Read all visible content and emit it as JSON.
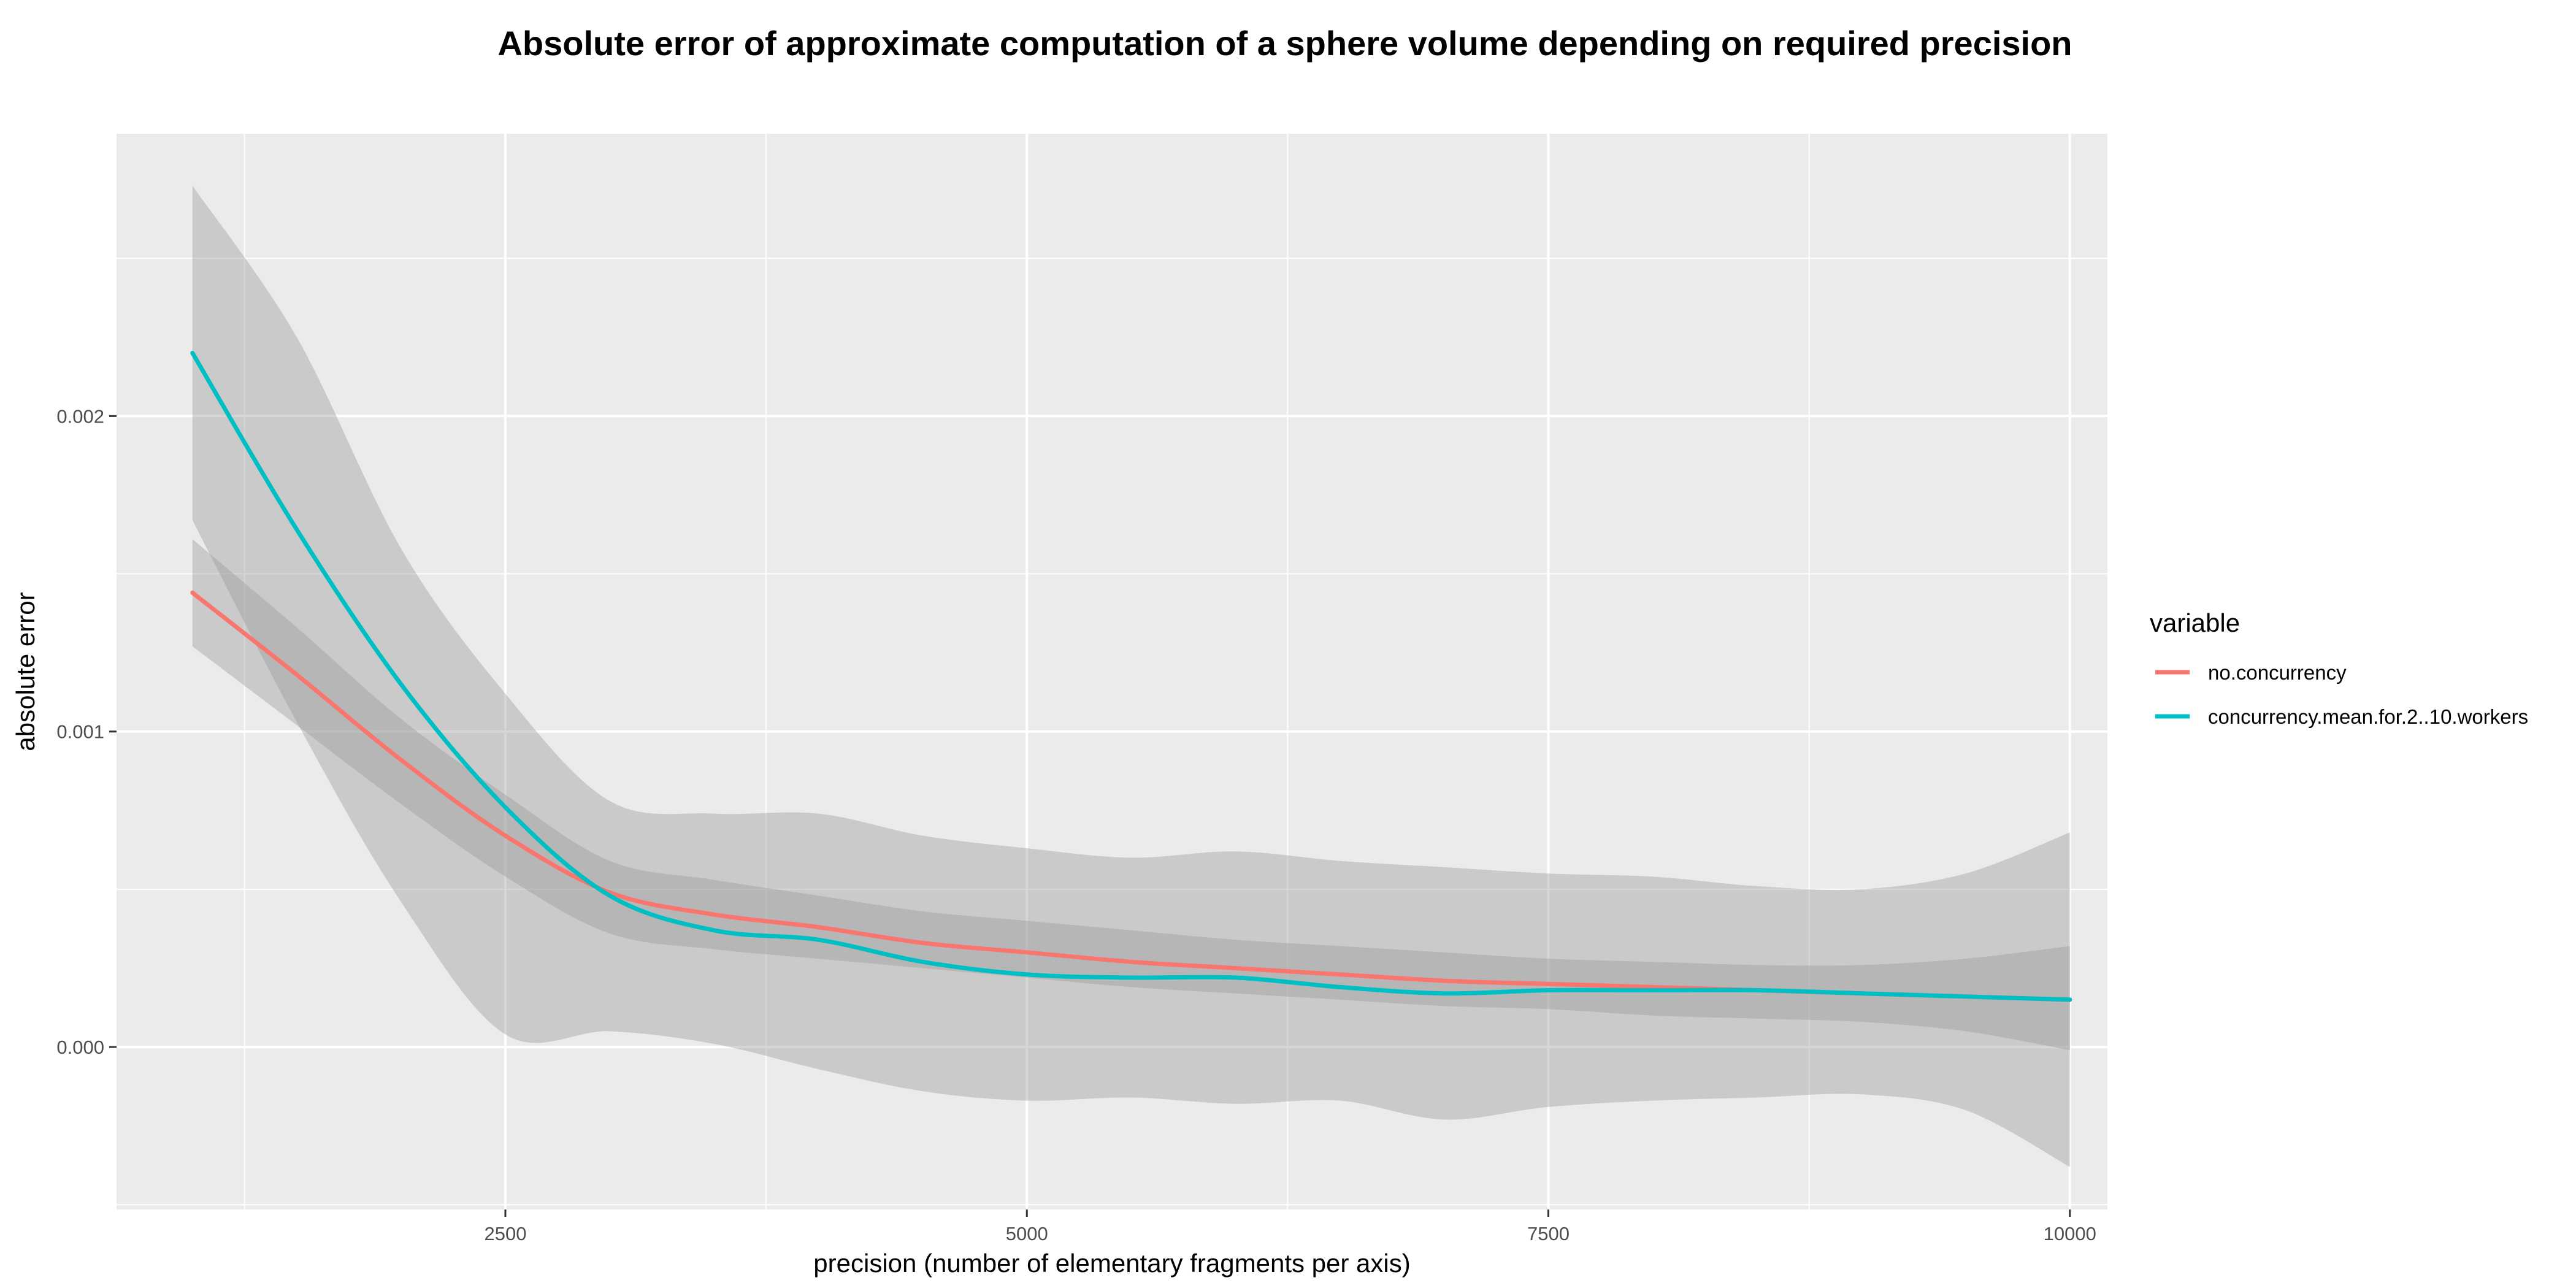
{
  "chart_data": {
    "type": "line",
    "title": "Absolute error of approximate computation of a sphere volume depending on required precision",
    "xlabel": "precision (number of elementary fragments per axis)",
    "ylabel": "absolute error",
    "xlim": [
      636,
      10180
    ],
    "ylim": [
      -0.000515,
      0.002895
    ],
    "x_ticks": [
      2500,
      5000,
      7500,
      10000
    ],
    "x_tick_labels": [
      "2500",
      "5000",
      "7500",
      "10000"
    ],
    "y_ticks": [
      0,
      0.001,
      0.002
    ],
    "y_tick_labels": [
      "0.000",
      "0.001",
      "0.002"
    ],
    "grid": true,
    "legend": {
      "title": "variable",
      "position": "right"
    },
    "series": [
      {
        "name": "no.concurrency",
        "color": "#F8766D",
        "x": [
          1000,
          1500,
          2000,
          2500,
          3000,
          3500,
          4000,
          4500,
          5000,
          5500,
          6000,
          6500,
          7000,
          7500,
          8000,
          8500,
          9000,
          9500,
          10000
        ],
        "y": [
          0.00144,
          0.00118,
          0.00091,
          0.00067,
          0.00049,
          0.00042,
          0.00038,
          0.00033,
          0.0003,
          0.00027,
          0.00025,
          0.00023,
          0.00021,
          0.0002,
          0.00019,
          0.00018,
          0.00017,
          0.00016,
          0.00015
        ],
        "lower": [
          0.00127,
          0.00102,
          0.00077,
          0.00054,
          0.00036,
          0.00031,
          0.00028,
          0.00025,
          0.00022,
          0.00019,
          0.00017,
          0.00015,
          0.00013,
          0.00012,
          0.0001,
          9e-05,
          8e-05,
          5e-05,
          -1e-05
        ],
        "upper": [
          0.00161,
          0.00133,
          0.00104,
          0.0008,
          0.00059,
          0.00053,
          0.00048,
          0.00043,
          0.0004,
          0.00037,
          0.00034,
          0.00032,
          0.0003,
          0.00028,
          0.00027,
          0.00026,
          0.00026,
          0.00028,
          0.00032
        ]
      },
      {
        "name": "concurrency.mean.for.2..10.workers",
        "color": "#00BFC4",
        "x": [
          1000,
          1500,
          2000,
          2500,
          3000,
          3500,
          4000,
          4500,
          5000,
          5500,
          6000,
          6500,
          7000,
          7500,
          8000,
          8500,
          9000,
          9500,
          10000
        ],
        "y": [
          0.0022,
          0.00164,
          0.00115,
          0.00076,
          0.00048,
          0.00037,
          0.00034,
          0.00027,
          0.00023,
          0.00022,
          0.00022,
          0.00019,
          0.00017,
          0.00018,
          0.00018,
          0.00018,
          0.00017,
          0.00016,
          0.00015
        ],
        "lower": [
          0.00167,
          0.00103,
          0.00046,
          4e-05,
          5e-05,
          1e-05,
          -7e-05,
          -0.00014,
          -0.00017,
          -0.00016,
          -0.00018,
          -0.00017,
          -0.00023,
          -0.00019,
          -0.00017,
          -0.00016,
          -0.00015,
          -0.0002,
          -0.00038
        ],
        "upper": [
          0.00273,
          0.00225,
          0.00158,
          0.00112,
          0.00078,
          0.00074,
          0.00074,
          0.00067,
          0.00063,
          0.0006,
          0.00062,
          0.00059,
          0.00057,
          0.00055,
          0.00054,
          0.00051,
          0.0005,
          0.00055,
          0.00068
        ]
      }
    ]
  }
}
